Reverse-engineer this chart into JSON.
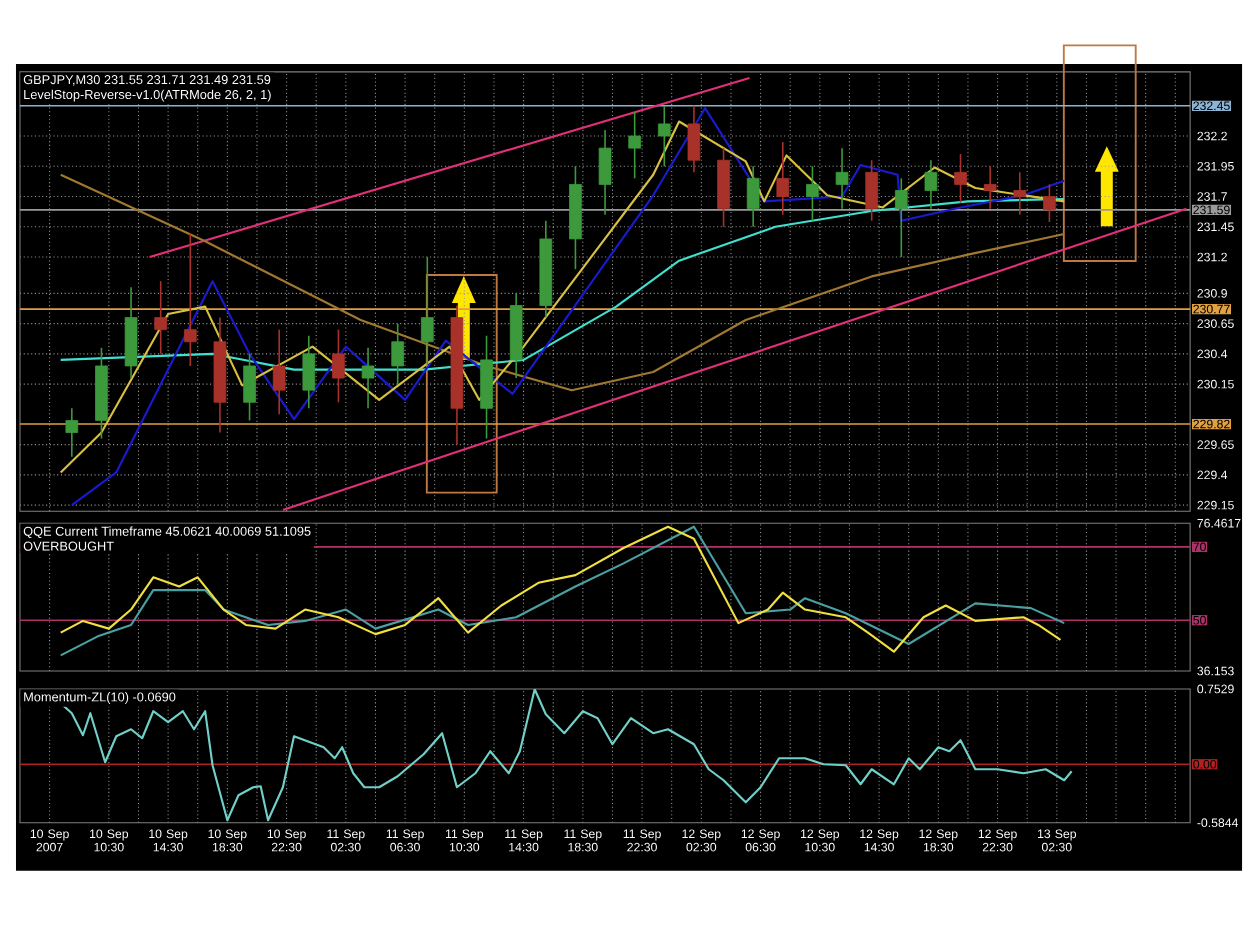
{
  "chart_data": [
    {
      "type": "candlestick",
      "title": "GBPJPY,M30 231.55 231.71 231.49 231.59",
      "subtitle": "LevelStop-Reverse-v1.0(ATRMode 26, 2, 1)",
      "xlim": [
        "2007-09-10T04:30",
        "2007-09-13T11:30"
      ],
      "ylim": [
        229.1,
        232.73
      ],
      "xticks": [
        {
          "value": "2007-09-10T06:30",
          "label": null
        },
        {
          "value": "2007-09-10T10:30",
          "label": null
        },
        {
          "value": "2007-09-10T12:30",
          "label": null
        },
        {
          "value": "2007-09-10T14:30",
          "label": null
        },
        {
          "value": "2007-09-10T16:30",
          "label": null
        },
        {
          "value": "2007-09-10T18:30",
          "label": null
        },
        {
          "value": "2007-09-10T20:30",
          "label": null
        },
        {
          "value": "2007-09-10T22:30",
          "label": null
        },
        {
          "value": "2007-09-11T00:30",
          "label": null
        },
        {
          "value": "2007-09-11T02:30",
          "label": null
        },
        {
          "value": "2007-09-11T04:30",
          "label": null
        },
        {
          "value": "2007-09-11T06:30",
          "label": null
        },
        {
          "value": "2007-09-11T08:30",
          "label": null
        },
        {
          "value": "2007-09-11T10:30",
          "label": null
        },
        {
          "value": "2007-09-11T12:30",
          "label": null
        },
        {
          "value": "2007-09-11T14:30",
          "label": null
        },
        {
          "value": "2007-09-11T16:30",
          "label": null
        },
        {
          "value": "2007-09-11T18:30",
          "label": null
        },
        {
          "value": "2007-09-11T20:30",
          "label": null
        },
        {
          "value": "2007-09-11T22:30",
          "label": null
        },
        {
          "value": "2007-09-12T00:30",
          "label": null
        },
        {
          "value": "2007-09-12T02:30",
          "label": null
        },
        {
          "value": "2007-09-12T04:30",
          "label": null
        },
        {
          "value": "2007-09-12T06:30",
          "label": null
        },
        {
          "value": "2007-09-12T08:30",
          "label": null
        },
        {
          "value": "2007-09-12T10:30",
          "label": null
        },
        {
          "value": "2007-09-12T12:30",
          "label": null
        },
        {
          "value": "2007-09-12T14:30",
          "label": null
        },
        {
          "value": "2007-09-12T16:30",
          "label": null
        },
        {
          "value": "2007-09-12T18:30",
          "label": null
        },
        {
          "value": "2007-09-12T20:30",
          "label": null
        },
        {
          "value": "2007-09-12T22:30",
          "label": null
        },
        {
          "value": "2007-09-13T00:30",
          "label": null
        },
        {
          "value": "2007-09-13T02:30",
          "label": null
        },
        {
          "value": "2007-09-13T04:30",
          "label": null
        },
        {
          "value": "2007-09-13T06:30",
          "label": null
        },
        {
          "value": "2007-09-13T08:30",
          "label": null
        },
        {
          "value": "2007-09-13T10:30",
          "label": null
        }
      ],
      "yticks": [
        229.15,
        229.4,
        229.65,
        230.15,
        230.4,
        230.65,
        230.9,
        231.2,
        231.45,
        231.7,
        231.95,
        232.2
      ],
      "tick_labels": "y",
      "grid": true,
      "ref_lines": [
        {
          "axis": "y",
          "value": 232.45,
          "label": "232.45",
          "color": "#8cb4d2"
        },
        {
          "axis": "y",
          "value": 231.59,
          "label": "231.59",
          "color": "#9a9a9a"
        },
        {
          "axis": "y",
          "value": 230.77,
          "label": "230.77",
          "color": "#e0a040"
        },
        {
          "axis": "y",
          "value": 229.82,
          "label": "229.82",
          "color": "#e0a040"
        }
      ],
      "series": [
        {
          "type": "line",
          "color": "#e0307a",
          "x": [
            "2007-09-10T13:15",
            "2007-09-12T05:45"
          ],
          "values": [
            231.2,
            232.68
          ]
        },
        {
          "type": "line",
          "color": "#e0307a",
          "x": [
            "2007-09-10T22:15",
            "2007-09-13T11:15"
          ],
          "values": [
            229.11,
            231.6
          ]
        },
        {
          "type": "line",
          "color": "#a07830",
          "x": [
            "2007-09-10T07:15",
            "2007-09-10T17:00",
            "2007-09-11T03:30",
            "2007-09-11T12:00",
            "2007-09-11T17:45",
            "2007-09-11T23:15",
            "2007-09-12T05:30",
            "2007-09-12T14:00",
            "2007-09-12T20:30",
            "2007-09-13T03:00"
          ],
          "values": [
            231.88,
            231.33,
            230.68,
            230.3,
            230.1,
            230.25,
            230.68,
            231.04,
            231.22,
            231.39
          ]
        },
        {
          "type": "line",
          "color": "#40e0d0",
          "x": [
            "2007-09-10T07:15",
            "2007-09-10T17:30",
            "2007-09-10T23:00",
            "2007-09-11T07:45",
            "2007-09-11T14:30",
            "2007-09-11T20:45",
            "2007-09-12T01:00",
            "2007-09-12T07:30",
            "2007-09-12T14:00",
            "2007-09-12T20:30",
            "2007-09-13T03:00"
          ],
          "values": [
            230.35,
            230.4,
            230.27,
            230.27,
            230.35,
            230.79,
            231.17,
            231.45,
            231.58,
            231.66,
            231.68
          ]
        },
        {
          "type": "line",
          "color": "#1a1ad0",
          "x": [
            "2007-09-10T08:00",
            "2007-09-10T11:00",
            "2007-09-10T17:30",
            "2007-09-10T20:00",
            "2007-09-10T23:00",
            "2007-09-11T02:30",
            "2007-09-11T06:30",
            "2007-09-11T09:15",
            "2007-09-11T13:45",
            "2007-09-11T23:15",
            "2007-09-12T02:45",
            "2007-09-12T06:45",
            "2007-09-12T12:00",
            "2007-09-12T13:15",
            "2007-09-12T15:45",
            "2007-09-12T16:00",
            "2007-09-12T20:00",
            "2007-09-13T00:15",
            "2007-09-13T03:00"
          ],
          "values": [
            229.15,
            229.42,
            231.0,
            230.4,
            229.86,
            230.46,
            230.02,
            230.51,
            230.07,
            231.71,
            232.43,
            231.66,
            231.7,
            231.96,
            231.88,
            231.5,
            231.61,
            231.71,
            231.83
          ]
        },
        {
          "type": "line",
          "color": "#d8c040",
          "x": [
            "2007-09-10T07:15",
            "2007-09-10T10:00",
            "2007-09-10T14:30",
            "2007-09-10T17:00",
            "2007-09-10T19:30",
            "2007-09-11T00:15",
            "2007-09-11T04:45",
            "2007-09-11T09:30",
            "2007-09-11T11:30",
            "2007-09-11T14:30",
            "2007-09-11T23:15",
            "2007-09-12T01:00",
            "2007-09-12T05:30",
            "2007-09-12T06:45",
            "2007-09-12T08:15",
            "2007-09-12T11:00",
            "2007-09-12T14:45",
            "2007-09-12T18:15",
            "2007-09-12T21:00",
            "2007-09-13T03:00"
          ],
          "values": [
            229.42,
            229.75,
            230.73,
            230.79,
            230.14,
            230.46,
            230.02,
            230.46,
            230.02,
            230.46,
            231.88,
            232.32,
            231.99,
            231.66,
            232.04,
            231.71,
            231.61,
            231.94,
            231.77,
            231.66
          ]
        },
        {
          "type": "candlestick",
          "x": [
            "2007-09-10T08:00",
            "2007-09-10T10:00",
            "2007-09-10T12:00",
            "2007-09-10T14:00",
            "2007-09-10T16:00",
            "2007-09-10T18:00",
            "2007-09-10T20:00",
            "2007-09-10T22:00",
            "2007-09-11T00:00",
            "2007-09-11T02:00",
            "2007-09-11T04:00",
            "2007-09-11T06:00",
            "2007-09-11T08:00",
            "2007-09-11T10:00",
            "2007-09-11T12:00",
            "2007-09-11T14:00",
            "2007-09-11T16:00",
            "2007-09-11T18:00",
            "2007-09-11T20:00",
            "2007-09-11T22:00",
            "2007-09-12T00:00",
            "2007-09-12T02:00",
            "2007-09-12T04:00",
            "2007-09-12T06:00",
            "2007-09-12T08:00",
            "2007-09-12T10:00",
            "2007-09-12T12:00",
            "2007-09-12T14:00",
            "2007-09-12T16:00",
            "2007-09-12T18:00",
            "2007-09-12T20:00",
            "2007-09-12T22:00",
            "2007-09-13T00:00",
            "2007-09-13T02:00"
          ],
          "ohlc": [
            [
              229.75,
              229.95,
              229.55,
              229.85
            ],
            [
              229.85,
              230.45,
              229.7,
              230.3
            ],
            [
              230.3,
              230.95,
              230.2,
              230.7
            ],
            [
              230.7,
              231.0,
              230.4,
              230.6
            ],
            [
              230.6,
              231.4,
              230.3,
              230.5
            ],
            [
              230.5,
              230.7,
              229.75,
              230.0
            ],
            [
              230.0,
              230.4,
              229.85,
              230.3
            ],
            [
              230.3,
              230.6,
              229.9,
              230.1
            ],
            [
              230.1,
              230.55,
              229.95,
              230.4
            ],
            [
              230.4,
              230.6,
              230.0,
              230.2
            ],
            [
              230.2,
              230.45,
              229.95,
              230.3
            ],
            [
              230.3,
              230.65,
              230.15,
              230.5
            ],
            [
              230.5,
              231.2,
              230.3,
              230.7
            ],
            [
              230.7,
              230.8,
              229.65,
              229.95
            ],
            [
              229.95,
              230.55,
              229.7,
              230.35
            ],
            [
              230.35,
              230.9,
              230.2,
              230.8
            ],
            [
              230.8,
              231.5,
              230.7,
              231.35
            ],
            [
              231.35,
              231.95,
              231.1,
              231.8
            ],
            [
              231.8,
              232.25,
              231.55,
              232.1
            ],
            [
              232.1,
              232.4,
              231.85,
              232.2
            ],
            [
              232.2,
              232.45,
              231.95,
              232.3
            ],
            [
              232.3,
              232.45,
              231.9,
              232.0
            ],
            [
              232.0,
              232.1,
              231.45,
              231.6
            ],
            [
              231.6,
              231.95,
              231.45,
              231.85
            ],
            [
              231.85,
              232.15,
              231.55,
              231.7
            ],
            [
              231.7,
              231.95,
              231.5,
              231.8
            ],
            [
              231.8,
              232.1,
              231.6,
              231.9
            ],
            [
              231.9,
              232.0,
              231.5,
              231.6
            ],
            [
              231.6,
              231.85,
              231.2,
              231.75
            ],
            [
              231.75,
              232.0,
              231.6,
              231.9
            ],
            [
              231.9,
              232.05,
              231.65,
              231.8
            ],
            [
              231.8,
              231.95,
              231.6,
              231.75
            ],
            [
              231.75,
              231.9,
              231.55,
              231.7
            ],
            [
              231.7,
              231.8,
              231.49,
              231.59
            ]
          ],
          "colors": [
            "#3c9a3c",
            "#3c9a3c",
            "#3c9a3c",
            "#a8322a",
            "#a8322a",
            "#a8322a",
            "#3c9a3c",
            "#a8322a",
            "#3c9a3c",
            "#a8322a",
            "#3c9a3c",
            "#3c9a3c",
            "#3c9a3c",
            "#a8322a",
            "#3c9a3c",
            "#3c9a3c",
            "#3c9a3c",
            "#3c9a3c",
            "#3c9a3c",
            "#3c9a3c",
            "#3c9a3c",
            "#a8322a",
            "#a8322a",
            "#3c9a3c",
            "#a8322a",
            "#3c9a3c",
            "#3c9a3c",
            "#a8322a",
            "#3c9a3c",
            "#3c9a3c",
            "#a8322a",
            "#a8322a",
            "#a8322a",
            "#a8322a"
          ]
        }
      ]
    },
    {
      "type": "line",
      "title": "QQE Current Timeframe 45.0621 40.0069 51.1095",
      "subtitle": "OVERBOUGHT",
      "xlim": [
        "2007-09-10T04:30",
        "2007-09-13T11:30"
      ],
      "ylim": [
        36.153,
        76.4617
      ],
      "xticks": [
        {
          "value": "2007-09-10T06:30",
          "label": null
        },
        {
          "value": "2007-09-10T10:30",
          "label": null
        },
        {
          "value": "2007-09-10T12:30",
          "label": null
        },
        {
          "value": "2007-09-10T14:30",
          "label": null
        },
        {
          "value": "2007-09-10T16:30",
          "label": null
        },
        {
          "value": "2007-09-10T18:30",
          "label": null
        },
        {
          "value": "2007-09-10T20:30",
          "label": null
        },
        {
          "value": "2007-09-10T22:30",
          "label": null
        },
        {
          "value": "2007-09-11T00:30",
          "label": null
        },
        {
          "value": "2007-09-11T02:30",
          "label": null
        },
        {
          "value": "2007-09-11T04:30",
          "label": null
        },
        {
          "value": "2007-09-11T06:30",
          "label": null
        },
        {
          "value": "2007-09-11T08:30",
          "label": null
        },
        {
          "value": "2007-09-11T10:30",
          "label": null
        },
        {
          "value": "2007-09-11T12:30",
          "label": null
        },
        {
          "value": "2007-09-11T14:30",
          "label": null
        },
        {
          "value": "2007-09-11T16:30",
          "label": null
        },
        {
          "value": "2007-09-11T18:30",
          "label": null
        },
        {
          "value": "2007-09-11T20:30",
          "label": null
        },
        {
          "value": "2007-09-11T22:30",
          "label": null
        },
        {
          "value": "2007-09-12T00:30",
          "label": null
        },
        {
          "value": "2007-09-12T02:30",
          "label": null
        },
        {
          "value": "2007-09-12T04:30",
          "label": null
        },
        {
          "value": "2007-09-12T06:30",
          "label": null
        },
        {
          "value": "2007-09-12T08:30",
          "label": null
        },
        {
          "value": "2007-09-12T10:30",
          "label": null
        },
        {
          "value": "2007-09-12T12:30",
          "label": null
        },
        {
          "value": "2007-09-12T14:30",
          "label": null
        },
        {
          "value": "2007-09-12T16:30",
          "label": null
        },
        {
          "value": "2007-09-12T18:30",
          "label": null
        },
        {
          "value": "2007-09-12T20:30",
          "label": null
        },
        {
          "value": "2007-09-12T22:30",
          "label": null
        },
        {
          "value": "2007-09-13T00:30",
          "label": null
        },
        {
          "value": "2007-09-13T02:30",
          "label": null
        },
        {
          "value": "2007-09-13T04:30",
          "label": null
        },
        {
          "value": "2007-09-13T06:30",
          "label": null
        },
        {
          "value": "2007-09-13T08:30",
          "label": null
        },
        {
          "value": "2007-09-13T10:30",
          "label": null
        }
      ],
      "yticks": [
        36.153,
        76.4617
      ],
      "tick_labels": "y",
      "grid": "x",
      "ref_lines": [
        {
          "axis": "y",
          "value": 70,
          "label": "70",
          "color": "#b0306a"
        },
        {
          "axis": "y",
          "value": 50,
          "label": "50",
          "color": "#b0306a"
        }
      ],
      "series": [
        {
          "color": "#4aa0a0",
          "x": [
            "2007-09-10T07:15",
            "2007-09-10T09:45",
            "2007-09-10T12:00",
            "2007-09-10T13:30",
            "2007-09-10T17:00",
            "2007-09-10T18:15",
            "2007-09-10T21:15",
            "2007-09-10T23:45",
            "2007-09-11T02:30",
            "2007-09-11T04:30",
            "2007-09-11T08:45",
            "2007-09-11T10:45",
            "2007-09-11T14:00",
            "2007-09-11T18:00",
            "2007-09-11T21:15",
            "2007-09-12T02:00",
            "2007-09-12T05:30",
            "2007-09-12T08:30",
            "2007-09-12T09:30",
            "2007-09-12T12:15",
            "2007-09-12T16:30",
            "2007-09-12T21:00",
            "2007-09-13T00:45",
            "2007-09-13T03:00"
          ],
          "values": [
            40.4,
            45.6,
            48.7,
            58.2,
            58.2,
            52.9,
            48.7,
            49.8,
            52.9,
            47.7,
            52.9,
            48.7,
            50.8,
            59.2,
            65.5,
            75.5,
            51.9,
            52.9,
            56.0,
            51.9,
            43.5,
            54.6,
            53.3,
            49.2
          ]
        },
        {
          "color": "#f0e040",
          "x": [
            "2007-09-10T07:15",
            "2007-09-10T08:45",
            "2007-09-10T10:30",
            "2007-09-10T12:00",
            "2007-09-10T13:30",
            "2007-09-10T15:15",
            "2007-09-10T16:30",
            "2007-09-10T18:15",
            "2007-09-10T19:45",
            "2007-09-10T21:45",
            "2007-09-10T23:45",
            "2007-09-11T02:00",
            "2007-09-11T04:30",
            "2007-09-11T06:30",
            "2007-09-11T08:45",
            "2007-09-11T10:45",
            "2007-09-11T13:00",
            "2007-09-11T15:30",
            "2007-09-11T18:00",
            "2007-09-11T21:15",
            "2007-09-12T00:15",
            "2007-09-12T02:00",
            "2007-09-12T05:00",
            "2007-09-12T07:00",
            "2007-09-12T08:00",
            "2007-09-12T09:30",
            "2007-09-12T12:15",
            "2007-09-12T13:45",
            "2007-09-12T15:30",
            "2007-09-12T17:30",
            "2007-09-12T19:00",
            "2007-09-12T21:00",
            "2007-09-13T00:15",
            "2007-09-13T01:15",
            "2007-09-13T02:45"
          ],
          "values": [
            46.6,
            49.8,
            47.7,
            52.9,
            61.7,
            59.2,
            61.7,
            52.9,
            48.7,
            47.7,
            52.9,
            50.8,
            46.2,
            48.7,
            56.0,
            46.6,
            54.0,
            60.2,
            62.3,
            69.7,
            75.5,
            72.2,
            49.2,
            52.9,
            57.5,
            52.9,
            50.8,
            46.6,
            41.4,
            50.8,
            54.0,
            49.8,
            50.8,
            48.7,
            44.6
          ]
        }
      ]
    },
    {
      "type": "line",
      "title": "Momentum-ZL(10) -0.0690",
      "xlim": [
        "2007-09-10T04:30",
        "2007-09-13T11:30"
      ],
      "ylim": [
        -0.5844,
        0.7529
      ],
      "xticks": [
        {
          "value": "2007-09-10T06:30",
          "label": "10 Sep 2007"
        },
        {
          "value": "2007-09-10T10:30",
          "label": "10 Sep 10:30"
        },
        {
          "value": "2007-09-10T12:30",
          "label": null
        },
        {
          "value": "2007-09-10T14:30",
          "label": "10 Sep 14:30"
        },
        {
          "value": "2007-09-10T16:30",
          "label": null
        },
        {
          "value": "2007-09-10T18:30",
          "label": "10 Sep 18:30"
        },
        {
          "value": "2007-09-10T20:30",
          "label": null
        },
        {
          "value": "2007-09-10T22:30",
          "label": "10 Sep 22:30"
        },
        {
          "value": "2007-09-11T00:30",
          "label": null
        },
        {
          "value": "2007-09-11T02:30",
          "label": "11 Sep 02:30"
        },
        {
          "value": "2007-09-11T04:30",
          "label": null
        },
        {
          "value": "2007-09-11T06:30",
          "label": "11 Sep 06:30"
        },
        {
          "value": "2007-09-11T08:30",
          "label": null
        },
        {
          "value": "2007-09-11T10:30",
          "label": "11 Sep 10:30"
        },
        {
          "value": "2007-09-11T12:30",
          "label": null
        },
        {
          "value": "2007-09-11T14:30",
          "label": "11 Sep 14:30"
        },
        {
          "value": "2007-09-11T16:30",
          "label": null
        },
        {
          "value": "2007-09-11T18:30",
          "label": "11 Sep 18:30"
        },
        {
          "value": "2007-09-11T20:30",
          "label": null
        },
        {
          "value": "2007-09-11T22:30",
          "label": "11 Sep 22:30"
        },
        {
          "value": "2007-09-12T00:30",
          "label": null
        },
        {
          "value": "2007-09-12T02:30",
          "label": "12 Sep 02:30"
        },
        {
          "value": "2007-09-12T04:30",
          "label": null
        },
        {
          "value": "2007-09-12T06:30",
          "label": "12 Sep 06:30"
        },
        {
          "value": "2007-09-12T08:30",
          "label": null
        },
        {
          "value": "2007-09-12T10:30",
          "label": "12 Sep 10:30"
        },
        {
          "value": "2007-09-12T12:30",
          "label": null
        },
        {
          "value": "2007-09-12T14:30",
          "label": "12 Sep 14:30"
        },
        {
          "value": "2007-09-12T16:30",
          "label": null
        },
        {
          "value": "2007-09-12T18:30",
          "label": "12 Sep 18:30"
        },
        {
          "value": "2007-09-12T20:30",
          "label": null
        },
        {
          "value": "2007-09-12T22:30",
          "label": "12 Sep 22:30"
        },
        {
          "value": "2007-09-13T00:30",
          "label": null
        },
        {
          "value": "2007-09-13T02:30",
          "label": "13 Sep 02:30"
        },
        {
          "value": "2007-09-13T04:30",
          "label": null
        },
        {
          "value": "2007-09-13T06:30",
          "label": null
        },
        {
          "value": "2007-09-13T08:30",
          "label": null
        },
        {
          "value": "2007-09-13T10:30",
          "label": null
        }
      ],
      "yticks": [
        -0.5844,
        0.7529
      ],
      "grid": "x",
      "ref_lines": [
        {
          "axis": "y",
          "value": 0,
          "label": "0.00",
          "color": "#b02020"
        }
      ],
      "series": [
        {
          "color": "#70d0c8",
          "x": [
            "2007-09-10T07:15",
            "2007-09-10T08:00",
            "2007-09-10T08:45",
            "2007-09-10T09:15",
            "2007-09-10T10:15",
            "2007-09-10T11:00",
            "2007-09-10T12:00",
            "2007-09-10T12:45",
            "2007-09-10T13:30",
            "2007-09-10T14:30",
            "2007-09-10T15:30",
            "2007-09-10T16:15",
            "2007-09-10T17:00",
            "2007-09-10T17:30",
            "2007-09-10T18:30",
            "2007-09-10T19:15",
            "2007-09-10T20:15",
            "2007-09-10T20:45",
            "2007-09-10T21:15",
            "2007-09-10T22:15",
            "2007-09-10T23:00",
            "2007-09-11T01:00",
            "2007-09-11T01:45",
            "2007-09-11T02:15",
            "2007-09-11T03:00",
            "2007-09-11T03:45",
            "2007-09-11T04:45",
            "2007-09-11T06:00",
            "2007-09-11T07:45",
            "2007-09-11T09:00",
            "2007-09-11T10:00",
            "2007-09-11T11:15",
            "2007-09-11T12:15",
            "2007-09-11T13:30",
            "2007-09-11T14:15",
            "2007-09-11T15:15",
            "2007-09-11T16:00",
            "2007-09-11T17:15",
            "2007-09-11T18:30",
            "2007-09-11T19:30",
            "2007-09-11T20:30",
            "2007-09-11T21:45",
            "2007-09-11T23:15",
            "2007-09-12T00:15",
            "2007-09-12T02:00",
            "2007-09-12T03:00",
            "2007-09-12T04:00",
            "2007-09-12T05:30",
            "2007-09-12T06:30",
            "2007-09-12T07:45",
            "2007-09-12T09:30",
            "2007-09-12T10:45",
            "2007-09-12T12:15",
            "2007-09-12T13:15",
            "2007-09-12T14:00",
            "2007-09-12T15:30",
            "2007-09-12T16:30",
            "2007-09-12T17:15",
            "2007-09-12T18:30",
            "2007-09-12T19:15",
            "2007-09-12T20:00",
            "2007-09-12T21:00",
            "2007-09-12T22:30",
            "2007-09-13T00:15",
            "2007-09-13T01:45",
            "2007-09-13T03:00",
            "2007-09-13T03:30"
          ],
          "values": [
            0.61,
            0.51,
            0.29,
            0.51,
            0.02,
            0.28,
            0.35,
            0.26,
            0.53,
            0.42,
            0.53,
            0.35,
            0.53,
            -0.01,
            -0.56,
            -0.31,
            -0.23,
            -0.22,
            -0.56,
            -0.23,
            0.28,
            0.17,
            0.06,
            0.17,
            -0.09,
            -0.23,
            -0.23,
            -0.12,
            0.1,
            0.31,
            -0.23,
            -0.09,
            0.13,
            -0.09,
            0.13,
            0.75,
            0.5,
            0.31,
            0.53,
            0.46,
            0.2,
            0.46,
            0.31,
            0.35,
            0.2,
            -0.05,
            -0.16,
            -0.38,
            -0.23,
            0.06,
            0.06,
            0.0,
            -0.01,
            -0.2,
            -0.05,
            -0.2,
            0.06,
            -0.05,
            0.17,
            0.13,
            0.24,
            -0.05,
            -0.05,
            -0.09,
            -0.05,
            -0.16,
            -0.07
          ]
        }
      ]
    }
  ]
}
